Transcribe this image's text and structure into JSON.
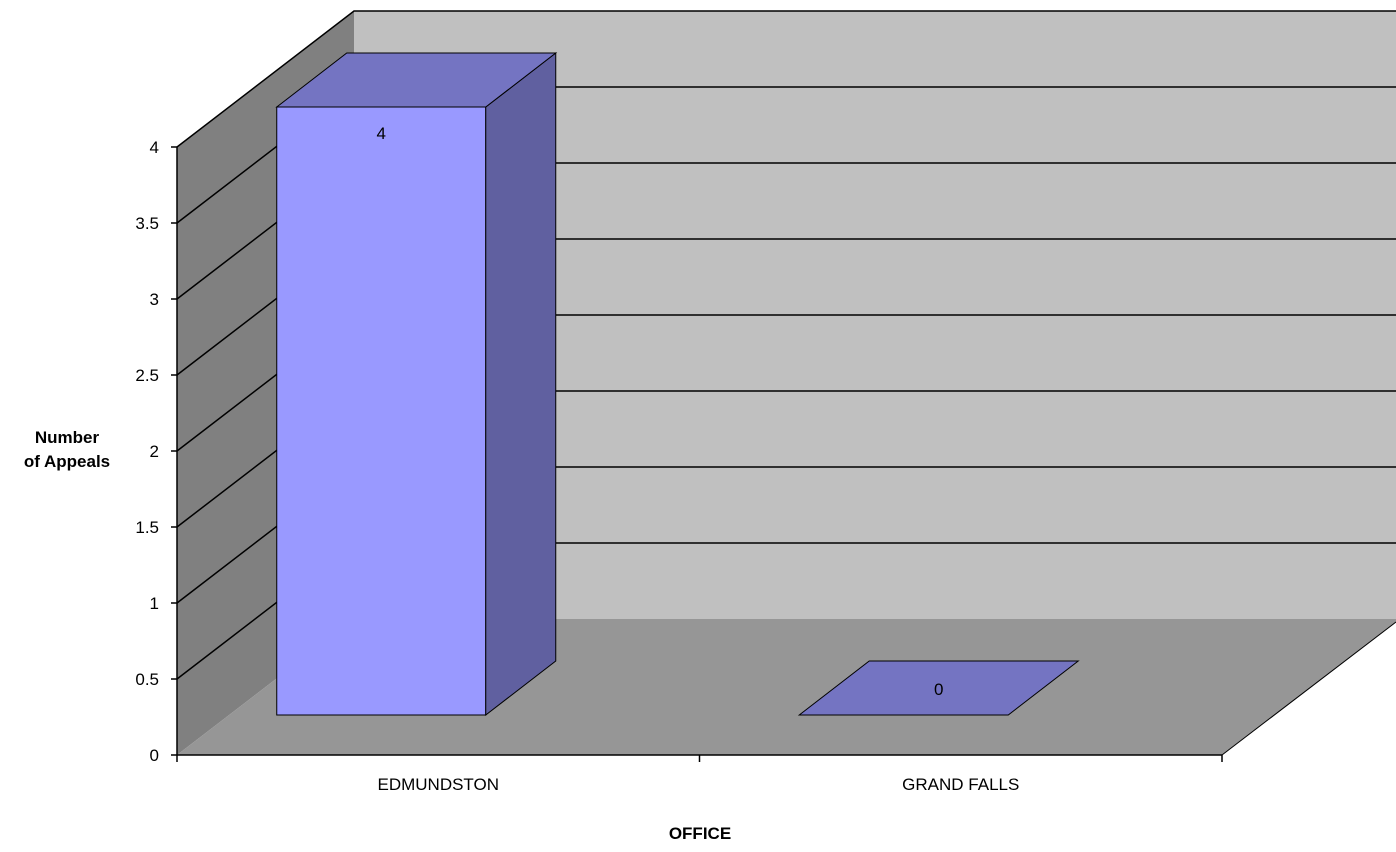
{
  "chart_data": {
    "type": "bar",
    "title": "",
    "xlabel": "OFFICE",
    "ylabel_lines": [
      "Number",
      "of Appeals"
    ],
    "categories": [
      "EDMUNDSTON",
      "GRAND FALLS"
    ],
    "series": [
      {
        "values": [
          4,
          0
        ]
      }
    ],
    "data_labels": [
      "4",
      "0"
    ],
    "ylim": [
      0,
      4
    ],
    "yticks": [
      "0",
      "0.5",
      "1",
      "1.5",
      "2",
      "2.5",
      "3",
      "3.5",
      "4"
    ],
    "grid": true,
    "three_d": true
  },
  "colors": {
    "back_wall": "#c0c0c0",
    "side_wall": "#808080",
    "floor": "#969696",
    "bar_front": "#9999ff",
    "bar_top": "#7474c2",
    "bar_side": "#6060a0",
    "gridline": "#000000"
  }
}
